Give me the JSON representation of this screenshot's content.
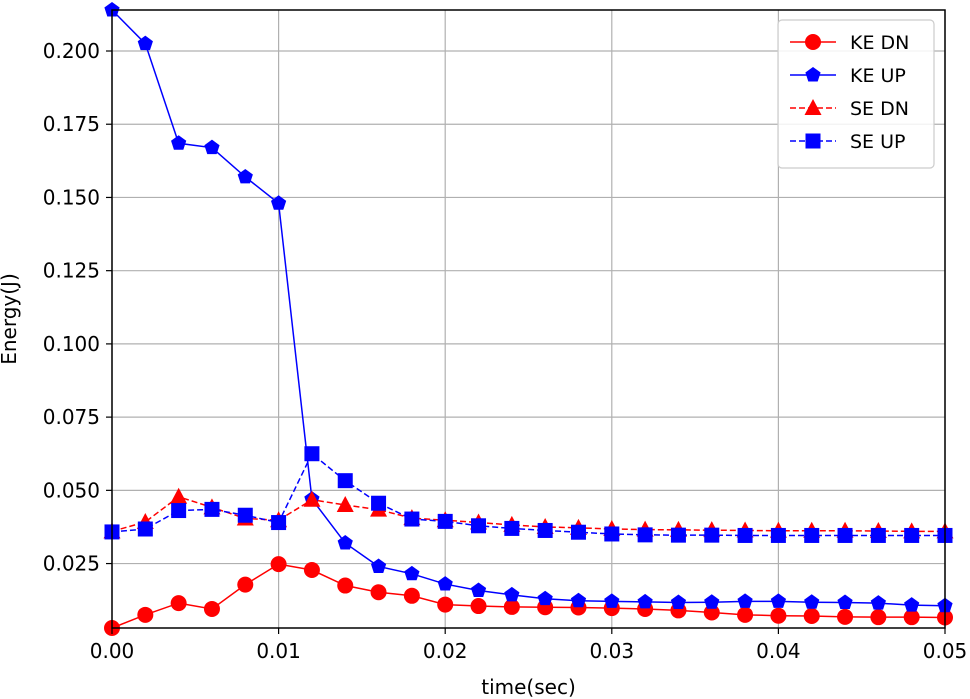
{
  "chart_data": {
    "type": "line",
    "xlabel": "time(sec)",
    "ylabel": "Energy(J)",
    "xlim": [
      0,
      0.05
    ],
    "ylim": [
      0.003,
      0.214
    ],
    "xticks": [
      0.0,
      0.01,
      0.02,
      0.03,
      0.04,
      0.05
    ],
    "xtick_labels": [
      "0.00",
      "0.01",
      "0.02",
      "0.03",
      "0.04",
      "0.05"
    ],
    "yticks": [
      0.025,
      0.05,
      0.075,
      0.1,
      0.125,
      0.15,
      0.175,
      0.2
    ],
    "ytick_labels": [
      "0.025",
      "0.050",
      "0.075",
      "0.100",
      "0.125",
      "0.150",
      "0.175",
      "0.200"
    ],
    "grid": true,
    "legend_position": "top-right",
    "x": [
      0.0,
      0.002,
      0.004,
      0.006,
      0.008,
      0.01,
      0.012,
      0.014,
      0.016,
      0.018,
      0.02,
      0.022,
      0.024,
      0.026,
      0.028,
      0.03,
      0.032,
      0.034,
      0.036,
      0.038,
      0.04,
      0.042,
      0.044,
      0.046,
      0.048,
      0.05
    ],
    "series": [
      {
        "name": "KE DN",
        "color": "#ff0000",
        "line_style": "solid",
        "marker": "circle",
        "values": [
          0.003,
          0.0075,
          0.0115,
          0.0095,
          0.0178,
          0.0248,
          0.0228,
          0.0175,
          0.0152,
          0.014,
          0.011,
          0.0105,
          0.0102,
          0.0101,
          0.01,
          0.0098,
          0.0095,
          0.009,
          0.0083,
          0.0075,
          0.0072,
          0.0071,
          0.0068,
          0.0067,
          0.0067,
          0.0066
        ]
      },
      {
        "name": "KE UP",
        "color": "#0000ff",
        "line_style": "solid",
        "marker": "pentagon",
        "values": [
          0.214,
          0.2025,
          0.1685,
          0.167,
          0.157,
          0.148,
          0.047,
          0.032,
          0.024,
          0.0215,
          0.018,
          0.0158,
          0.0143,
          0.013,
          0.0123,
          0.0121,
          0.0119,
          0.0117,
          0.0118,
          0.0121,
          0.0121,
          0.0118,
          0.0117,
          0.0115,
          0.0108,
          0.0106
        ]
      },
      {
        "name": "SE DN",
        "color": "#ff0000",
        "line_style": "dashed",
        "marker": "triangle",
        "values": [
          0.036,
          0.0392,
          0.0478,
          0.0442,
          0.0404,
          0.0398,
          0.0468,
          0.045,
          0.0434,
          0.0405,
          0.0398,
          0.039,
          0.0382,
          0.0375,
          0.0372,
          0.0368,
          0.0366,
          0.0365,
          0.0364,
          0.0363,
          0.0362,
          0.0362,
          0.0362,
          0.0361,
          0.036,
          0.036
        ]
      },
      {
        "name": "SE UP",
        "color": "#0000ff",
        "line_style": "dashed",
        "marker": "square",
        "values": [
          0.0358,
          0.0368,
          0.0431,
          0.0435,
          0.0415,
          0.039,
          0.0625,
          0.0533,
          0.0456,
          0.0402,
          0.0394,
          0.0379,
          0.037,
          0.0363,
          0.0357,
          0.0351,
          0.0348,
          0.0347,
          0.0347,
          0.0346,
          0.0346,
          0.0346,
          0.0346,
          0.0346,
          0.0346,
          0.0346
        ]
      }
    ]
  }
}
